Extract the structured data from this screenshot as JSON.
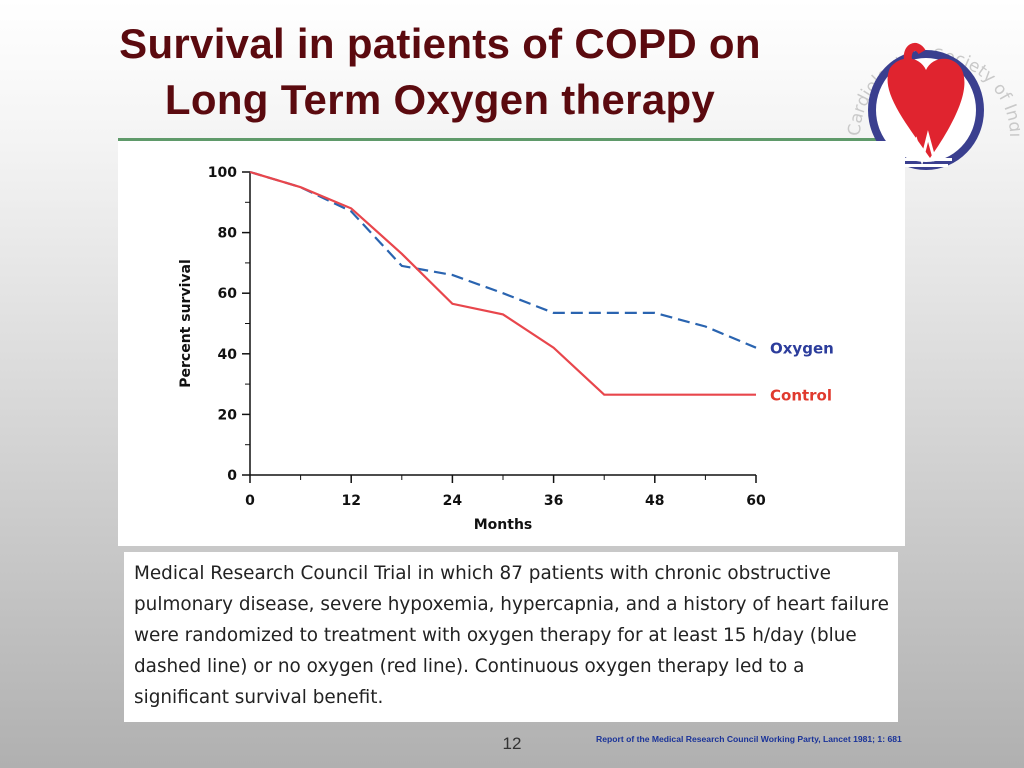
{
  "slide": {
    "title_line1": "Survival in patients of COPD on",
    "title_line2": "Long Term Oxygen therapy",
    "caption": "Medical Research Council Trial in which 87 patients with chronic obstructive pulmonary disease, severe hypoxemia, hypercapnia, and a history of heart failure were randomized to treatment with oxygen therapy for at least 15 h/day (blue dashed line) or no oxygen (red line). Continuous oxygen therapy led to a significant survival benefit.",
    "slide_number": "12",
    "reference": "Report of the Medical Research Council Working Party, Lancet 1981; 1: 681",
    "logo": {
      "icon": "heart-ecg-logo-icon",
      "arc_text": "Cardiological Society of India",
      "colors": {
        "ring": "#3a3f8f",
        "heart": "#e0242f",
        "background": "#ffffff"
      }
    }
  },
  "colors": {
    "title": "#5b0a0f",
    "rule": "#5f9a6a",
    "oxygen": "#2a64b0",
    "control": "#e8464c",
    "oxygen_label": "#2c3d9c",
    "control_label": "#e03a2e"
  },
  "chart_data": {
    "type": "line",
    "xlabel": "Months",
    "ylabel": "Percent survival",
    "xlim": [
      0,
      60
    ],
    "ylim": [
      0,
      100
    ],
    "x_ticks": [
      0,
      12,
      24,
      36,
      48,
      60
    ],
    "y_ticks": [
      0,
      20,
      40,
      60,
      80,
      100
    ],
    "grid": false,
    "series": [
      {
        "name": "Oxygen",
        "style": "dashed",
        "x": [
          0,
          6,
          12,
          18,
          24,
          30,
          36,
          42,
          48,
          54,
          60
        ],
        "y": [
          100,
          95,
          87,
          69,
          66,
          60,
          53.5,
          53.5,
          53.5,
          49,
          42
        ]
      },
      {
        "name": "Control",
        "style": "solid",
        "x": [
          0,
          6,
          12,
          18,
          24,
          30,
          36,
          42,
          48,
          54,
          60
        ],
        "y": [
          100,
          95,
          88,
          73,
          56.5,
          53,
          42,
          26.5,
          26.5,
          26.5,
          26.5
        ]
      }
    ]
  }
}
